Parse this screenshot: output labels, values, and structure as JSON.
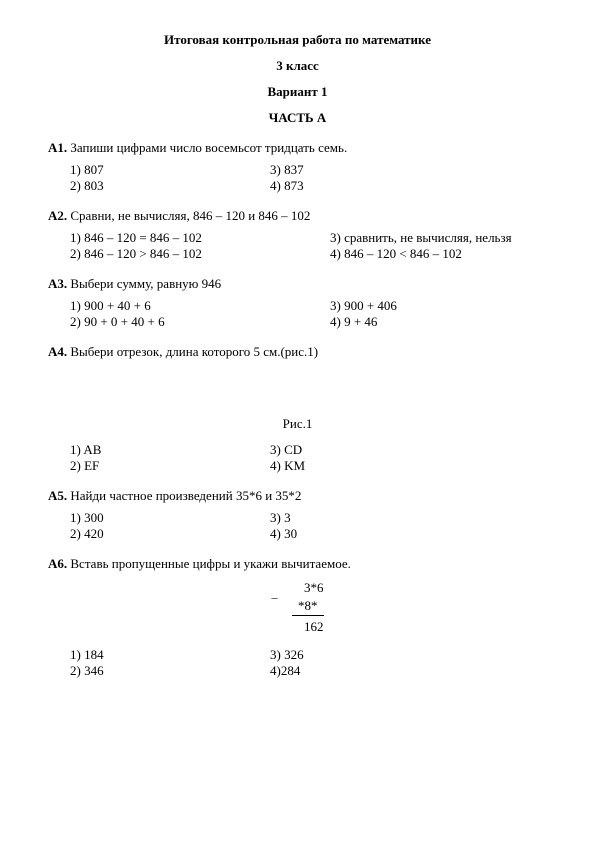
{
  "title": "Итоговая контрольная работа по математике",
  "grade": "3 класс",
  "variant": "Вариант 1",
  "partA": "ЧАСТЬ А",
  "q1": {
    "label": "А1.",
    "text": " Запиши цифрами число восемьсот тридцать семь.",
    "opts": [
      "1)  807",
      "3) 837",
      "2)  803",
      "4) 873"
    ]
  },
  "q2": {
    "label": "А2.",
    "text": " Сравни, не вычисляя, 846 – 120 и 846 – 102",
    "opts": [
      "1)  846 – 120 = 846 – 102",
      "3) сравнить, не вычисляя, нельзя",
      "2)  846 – 120 > 846 – 102",
      "4) 846 – 120 < 846 – 102"
    ]
  },
  "q3": {
    "label": "А3.",
    "text": " Выбери сумму, равную 946",
    "opts": [
      "1)  900 + 40 + 6",
      "3) 900 + 406",
      "2)  90 + 0 + 40 + 6",
      "4) 9 + 46"
    ]
  },
  "q4": {
    "label": "А4.",
    "text": " Выбери отрезок, длина которого 5 см.(рис.1)",
    "fig": "Рис.1",
    "opts": [
      "1)  AB",
      "3) CD",
      "2)  EF",
      "4) KM"
    ]
  },
  "q5": {
    "label": "А5.",
    "text": " Найди частное произведений 35*6 и 35*2",
    "opts": [
      "1)  300",
      "3) 3",
      "2)  420",
      "4) 30"
    ]
  },
  "q6": {
    "label": "А6.",
    "text": " Вставь пропущенные цифры и укажи вычитаемое.",
    "sub_top": "3*6",
    "sub_mid": "*8*",
    "sub_res": "162",
    "opts": [
      "1)  184",
      "3) 326",
      "2)  346",
      "4)284"
    ]
  }
}
